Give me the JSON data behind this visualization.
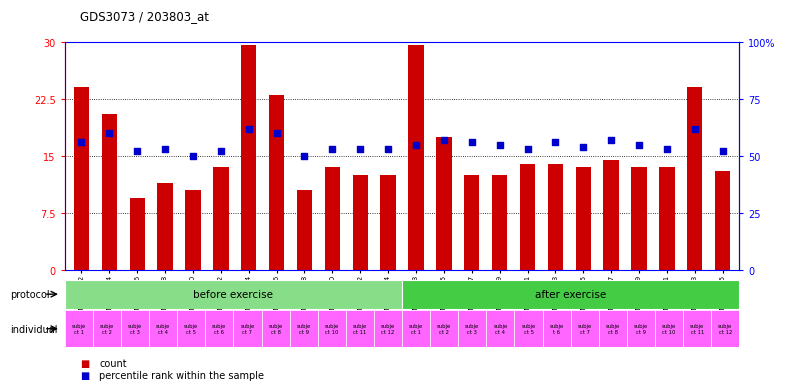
{
  "title": "GDS3073 / 203803_at",
  "samples": [
    "GSM214982",
    "GSM214984",
    "GSM214986",
    "GSM214988",
    "GSM214990",
    "GSM214992",
    "GSM214994",
    "GSM214996",
    "GSM214998",
    "GSM215000",
    "GSM215002",
    "GSM215004",
    "GSM214983",
    "GSM214985",
    "GSM214987",
    "GSM214989",
    "GSM214991",
    "GSM214993",
    "GSM214995",
    "GSM214997",
    "GSM214999",
    "GSM215001",
    "GSM215003",
    "GSM215005"
  ],
  "counts": [
    24.0,
    20.5,
    9.5,
    11.5,
    10.5,
    13.5,
    29.5,
    23.0,
    10.5,
    13.5,
    12.5,
    12.5,
    29.5,
    17.5,
    12.5,
    12.5,
    14.0,
    14.0,
    13.5,
    14.5,
    13.5,
    13.5,
    24.0,
    13.0
  ],
  "percentiles": [
    56,
    60,
    52,
    53,
    50,
    52,
    62,
    60,
    50,
    53,
    53,
    53,
    55,
    57,
    56,
    55,
    53,
    56,
    54,
    57,
    55,
    53,
    62,
    52
  ],
  "before_count": 12,
  "after_count": 12,
  "protocol_labels": [
    "before exercise",
    "after exercise"
  ],
  "ind_labels": [
    "subje\nct 1",
    "subje\nct 2",
    "subje\nct 3",
    "subje\nct 4",
    "subje\nct 5",
    "subje\nct 6",
    "subje\nct 7",
    "subje\nct 8",
    "subje\nct 9",
    "subje\nct 10",
    "subje\nct 11",
    "subje\nct 12",
    "subje\nct 1",
    "subje\nct 2",
    "subje\nct 3",
    "subje\nct 4",
    "subje\nct 5",
    "subje\nt 6",
    "subje\nct 7",
    "subje\nct 8",
    "subje\nct 9",
    "subje\nct 10",
    "subje\nct 11",
    "subje\nct 12"
  ],
  "ylim_left": [
    0,
    30
  ],
  "yticks_left": [
    0,
    7.5,
    15,
    22.5,
    30
  ],
  "ylim_right": [
    0,
    100
  ],
  "yticks_right": [
    0,
    25,
    50,
    75,
    100
  ],
  "bar_color": "#cc0000",
  "dot_color": "#0000cc",
  "bg_color": "#ffffff",
  "protocol_color_before": "#88dd88",
  "protocol_color_after": "#44cc44",
  "individual_color": "#ff66ff",
  "legend_color_red": "#cc0000",
  "legend_color_blue": "#0000cc"
}
